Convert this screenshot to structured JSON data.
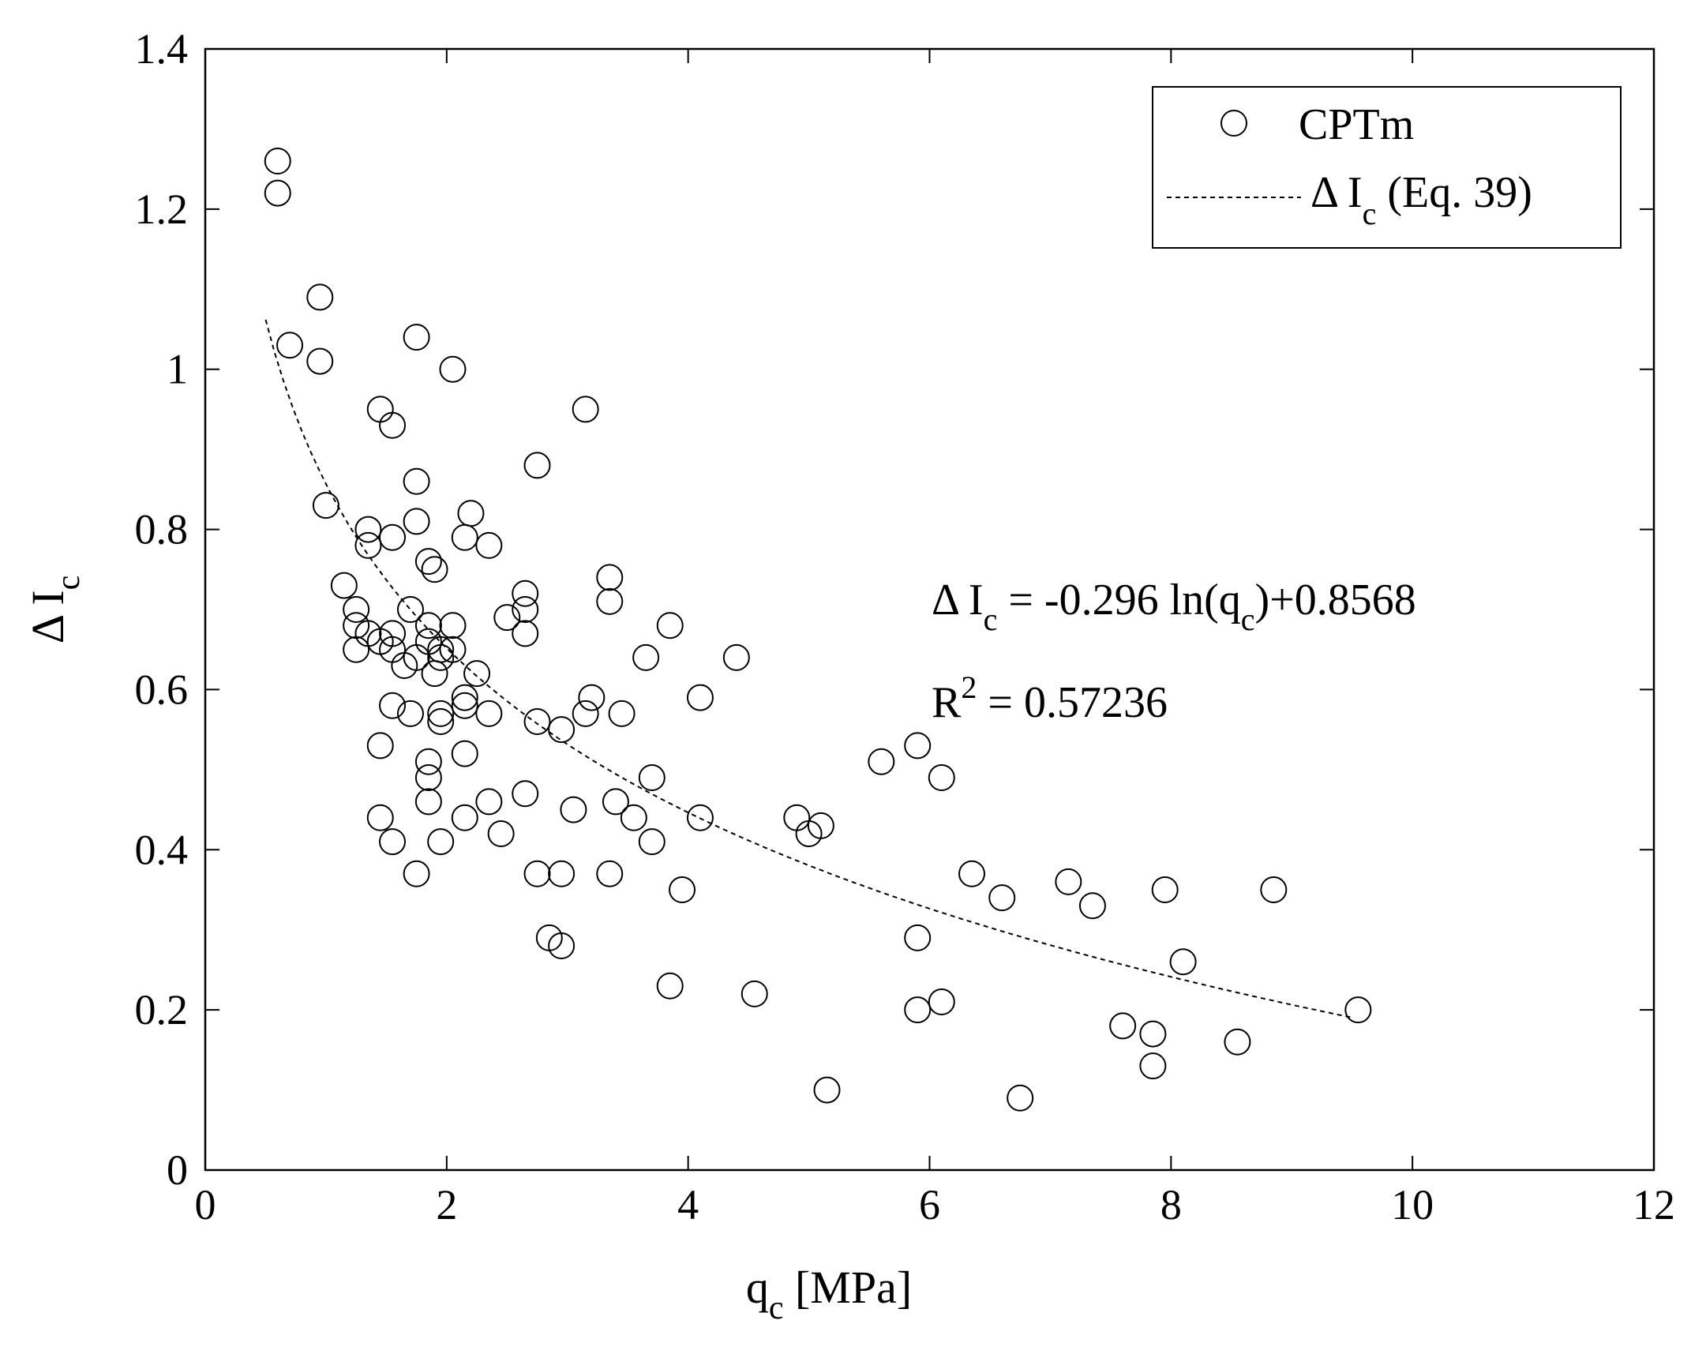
{
  "chart_data": {
    "type": "scatter",
    "xlabel_main": "q",
    "xlabel_sub": "c",
    "xlabel_unit": " [MPa]",
    "ylabel_main": "Δ I",
    "ylabel_sub": "c",
    "xlim": [
      0,
      12
    ],
    "ylim": [
      0,
      1.4
    ],
    "xticks": [
      0,
      2,
      4,
      6,
      8,
      10,
      12
    ],
    "yticks": [
      0,
      0.2,
      0.4,
      0.6,
      0.8,
      1,
      1.2,
      1.4
    ],
    "xtick_labels": [
      "0",
      "2",
      "4",
      "6",
      "8",
      "10",
      "12"
    ],
    "ytick_labels": [
      "0",
      "0.2",
      "0.4",
      "0.6",
      "0.8",
      "1",
      "1.2",
      "1.4"
    ],
    "legend": {
      "position": "top-right",
      "scatter_label": "CPTm",
      "fit_label_main": "Δ I",
      "fit_label_sub": "c",
      "fit_label_tail": " (Eq. 39)"
    },
    "annotations": {
      "equation_main": "Δ I",
      "equation_sub1": "c",
      "equation_mid": " = -0.296 ln(q",
      "equation_sub2": "c",
      "equation_tail": ")+0.8568",
      "r2_main": "R",
      "r2_sup": "2",
      "r2_tail": " = 0.57236"
    },
    "fit": {
      "a": -0.296,
      "b": 0.8568,
      "x_start": 0.5,
      "x_end": 9.5
    },
    "series": [
      {
        "name": "CPTm",
        "points": [
          [
            0.6,
            1.26
          ],
          [
            0.6,
            1.22
          ],
          [
            0.95,
            1.09
          ],
          [
            0.7,
            1.03
          ],
          [
            0.95,
            1.01
          ],
          [
            1.75,
            1.04
          ],
          [
            2.05,
            1.0
          ],
          [
            1.45,
            0.95
          ],
          [
            1.55,
            0.93
          ],
          [
            3.15,
            0.95
          ],
          [
            1.75,
            0.86
          ],
          [
            2.75,
            0.88
          ],
          [
            1.0,
            0.83
          ],
          [
            1.75,
            0.81
          ],
          [
            1.35,
            0.8
          ],
          [
            1.55,
            0.79
          ],
          [
            2.2,
            0.82
          ],
          [
            2.15,
            0.79
          ],
          [
            2.35,
            0.78
          ],
          [
            1.35,
            0.78
          ],
          [
            1.85,
            0.76
          ],
          [
            1.9,
            0.75
          ],
          [
            1.15,
            0.73
          ],
          [
            1.25,
            0.7
          ],
          [
            1.7,
            0.7
          ],
          [
            2.65,
            0.72
          ],
          [
            2.65,
            0.7
          ],
          [
            3.35,
            0.74
          ],
          [
            3.35,
            0.71
          ],
          [
            1.25,
            0.68
          ],
          [
            1.35,
            0.67
          ],
          [
            1.55,
            0.67
          ],
          [
            1.85,
            0.68
          ],
          [
            2.05,
            0.68
          ],
          [
            2.5,
            0.69
          ],
          [
            2.65,
            0.67
          ],
          [
            3.85,
            0.68
          ],
          [
            1.45,
            0.66
          ],
          [
            1.55,
            0.65
          ],
          [
            1.85,
            0.66
          ],
          [
            1.95,
            0.65
          ],
          [
            2.05,
            0.65
          ],
          [
            1.25,
            0.65
          ],
          [
            1.95,
            0.64
          ],
          [
            1.75,
            0.64
          ],
          [
            1.65,
            0.63
          ],
          [
            1.9,
            0.62
          ],
          [
            2.25,
            0.62
          ],
          [
            3.65,
            0.64
          ],
          [
            4.4,
            0.64
          ],
          [
            2.15,
            0.59
          ],
          [
            2.15,
            0.58
          ],
          [
            3.2,
            0.59
          ],
          [
            4.1,
            0.59
          ],
          [
            1.55,
            0.58
          ],
          [
            1.7,
            0.57
          ],
          [
            1.95,
            0.57
          ],
          [
            1.95,
            0.56
          ],
          [
            2.35,
            0.57
          ],
          [
            3.15,
            0.57
          ],
          [
            3.45,
            0.57
          ],
          [
            2.75,
            0.56
          ],
          [
            2.95,
            0.55
          ],
          [
            1.45,
            0.53
          ],
          [
            2.15,
            0.52
          ],
          [
            1.85,
            0.51
          ],
          [
            5.9,
            0.53
          ],
          [
            5.6,
            0.51
          ],
          [
            1.85,
            0.49
          ],
          [
            3.7,
            0.49
          ],
          [
            6.1,
            0.49
          ],
          [
            2.65,
            0.47
          ],
          [
            1.85,
            0.46
          ],
          [
            2.35,
            0.46
          ],
          [
            3.4,
            0.46
          ],
          [
            1.45,
            0.44
          ],
          [
            2.15,
            0.44
          ],
          [
            3.05,
            0.45
          ],
          [
            3.55,
            0.44
          ],
          [
            4.1,
            0.44
          ],
          [
            4.9,
            0.44
          ],
          [
            5.1,
            0.43
          ],
          [
            5.0,
            0.42
          ],
          [
            2.45,
            0.42
          ],
          [
            1.55,
            0.41
          ],
          [
            1.95,
            0.41
          ],
          [
            3.7,
            0.41
          ],
          [
            1.75,
            0.37
          ],
          [
            2.75,
            0.37
          ],
          [
            2.95,
            0.37
          ],
          [
            3.35,
            0.37
          ],
          [
            6.35,
            0.37
          ],
          [
            3.95,
            0.35
          ],
          [
            6.6,
            0.34
          ],
          [
            7.15,
            0.36
          ],
          [
            7.35,
            0.33
          ],
          [
            7.95,
            0.35
          ],
          [
            8.85,
            0.35
          ],
          [
            2.85,
            0.29
          ],
          [
            2.95,
            0.28
          ],
          [
            5.9,
            0.29
          ],
          [
            8.1,
            0.26
          ],
          [
            3.85,
            0.23
          ],
          [
            4.55,
            0.22
          ],
          [
            5.9,
            0.2
          ],
          [
            6.1,
            0.21
          ],
          [
            9.55,
            0.2
          ],
          [
            7.6,
            0.18
          ],
          [
            7.85,
            0.17
          ],
          [
            8.55,
            0.16
          ],
          [
            7.85,
            0.13
          ],
          [
            5.15,
            0.1
          ],
          [
            6.75,
            0.09
          ]
        ]
      }
    ]
  }
}
